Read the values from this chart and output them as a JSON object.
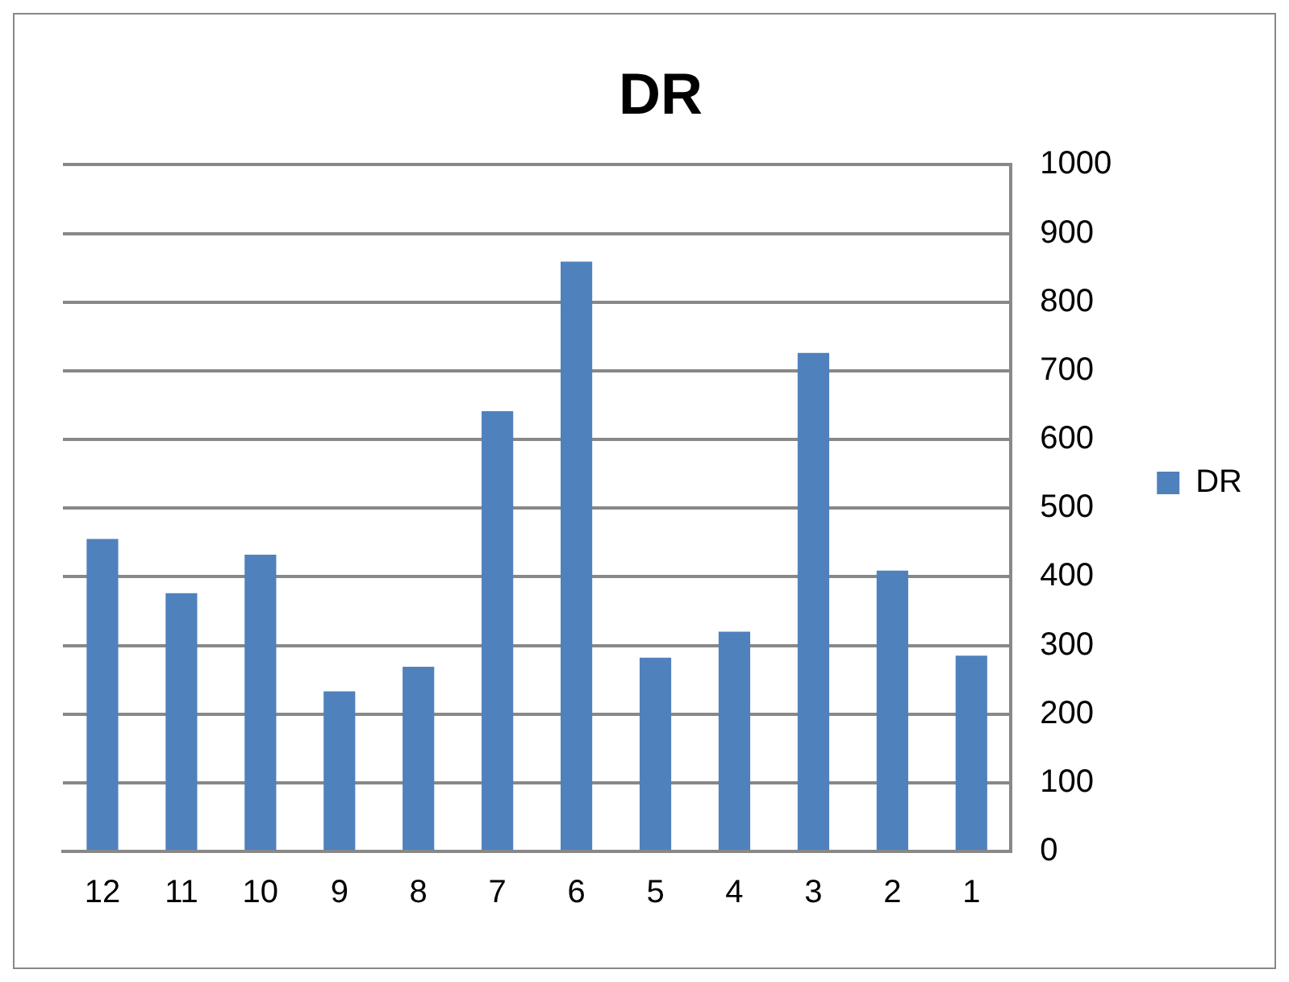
{
  "chart_data": {
    "type": "bar",
    "title": "DR",
    "categories": [
      "12",
      "11",
      "10",
      "9",
      "8",
      "7",
      "6",
      "5",
      "4",
      "3",
      "2",
      "1"
    ],
    "series": [
      {
        "name": "DR",
        "color": "#4f81bd",
        "values": [
          455,
          376,
          432,
          233,
          269,
          641,
          859,
          282,
          320,
          726,
          409,
          285
        ]
      }
    ],
    "ylim": [
      0,
      1000
    ],
    "yticks": [
      0,
      100,
      200,
      300,
      400,
      500,
      600,
      700,
      800,
      900,
      1000
    ],
    "grid": "y",
    "legend": "right"
  }
}
